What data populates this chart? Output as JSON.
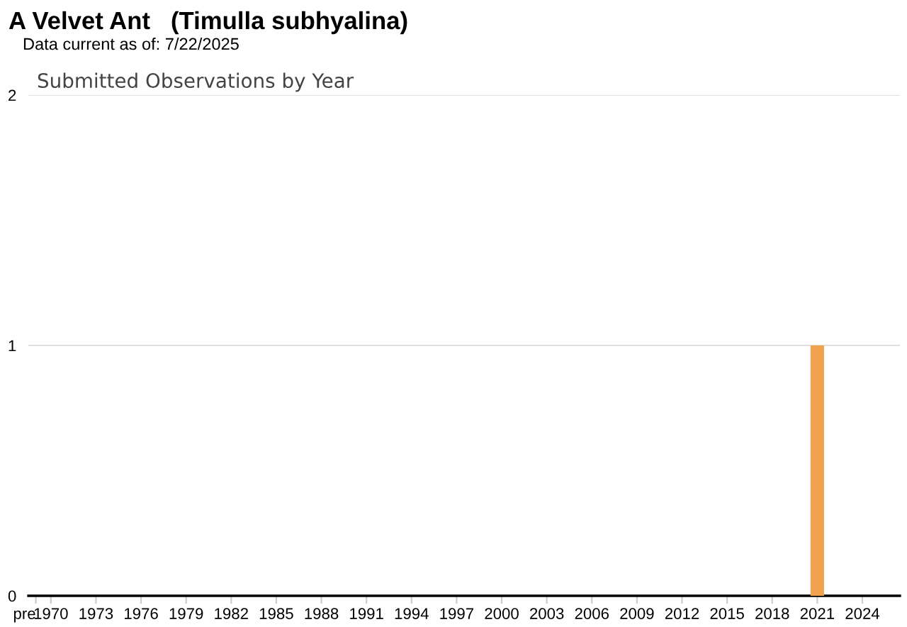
{
  "chart_data": {
    "type": "bar",
    "title": "A Velvet Ant   (Timulla subhyalina)",
    "subtitle": "Data current as of: 7/22/2025",
    "annotations": [
      "Submitted Observations by Year"
    ],
    "categories": [
      "pre",
      "1970",
      null,
      null,
      "1973",
      null,
      null,
      "1976",
      null,
      null,
      "1979",
      null,
      null,
      "1982",
      null,
      null,
      "1985",
      null,
      null,
      "1988",
      null,
      null,
      "1991",
      null,
      null,
      "1994",
      null,
      null,
      "1997",
      null,
      null,
      "2000",
      null,
      null,
      "2003",
      null,
      null,
      "2006",
      null,
      null,
      "2009",
      null,
      null,
      "2012",
      null,
      null,
      "2015",
      null,
      null,
      "2018",
      null,
      null,
      "2021",
      null,
      null,
      "2024",
      null,
      null
    ],
    "series": [
      {
        "color": "#f0a24e",
        "values": [
          0,
          0,
          0,
          0,
          0,
          0,
          0,
          0,
          0,
          0,
          0,
          0,
          0,
          0,
          0,
          0,
          0,
          0,
          0,
          0,
          0,
          0,
          0,
          0,
          0,
          0,
          0,
          0,
          0,
          0,
          0,
          0,
          0,
          0,
          0,
          0,
          0,
          0,
          0,
          0,
          0,
          0,
          0,
          0,
          0,
          0,
          0,
          0,
          0,
          0,
          0,
          0,
          1,
          0,
          0,
          0,
          0,
          0
        ]
      }
    ],
    "ylim": [
      0,
      2
    ],
    "yticks": [
      0,
      1,
      2
    ],
    "grid": "y",
    "legend": false
  }
}
